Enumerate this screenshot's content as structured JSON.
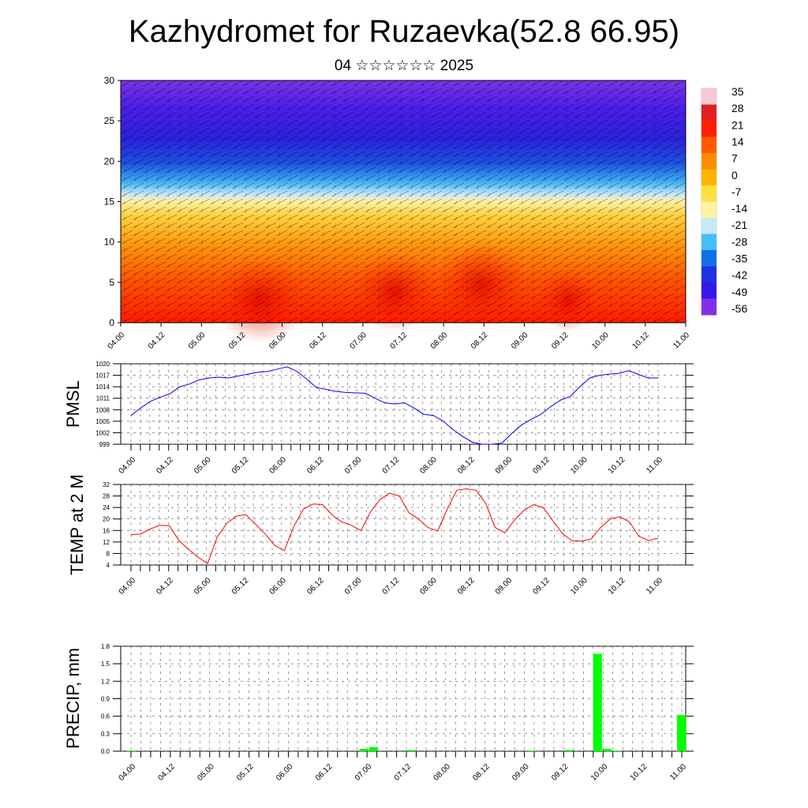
{
  "title": "Kazhydromet for Ruzaevka(52.8 66.95)",
  "subtitle": "04 ☆☆☆☆☆☆ 2025",
  "time_labels": [
    "04.00",
    "04.12",
    "05.00",
    "05.12",
    "06.00",
    "06.12",
    "07.00",
    "07.12",
    "08.00",
    "08.12",
    "09.00",
    "09.12",
    "10.00",
    "10.12",
    "11.00"
  ],
  "colors": {
    "pmsl": "#0000ff",
    "temp": "#ff0000",
    "precip": "#00ff00"
  },
  "chart_data": [
    {
      "type": "heatmap",
      "name": "upper-air-temperature-and-wind",
      "ylim": [
        0,
        30
      ],
      "yticks": [
        0,
        5,
        10,
        15,
        20,
        25,
        30
      ],
      "colorbar_labels": [
        "35",
        "28",
        "21",
        "14",
        "7",
        "0",
        "-7",
        "-14",
        "-21",
        "-28",
        "-35",
        "-42",
        "-49",
        "-56"
      ],
      "colorbar_colors": [
        "#f5c8d6",
        "#e02020",
        "#ff2000",
        "#ff5a00",
        "#ff8c00",
        "#ffb400",
        "#ffe040",
        "#fff4a0",
        "#c8e8f8",
        "#40c0f8",
        "#1070e8",
        "#2030e0",
        "#3818e8",
        "#8030e8"
      ]
    },
    {
      "type": "line",
      "ylabel": "PMSL",
      "ylim": [
        999,
        1020
      ],
      "yticks": [
        999,
        1002,
        1005,
        1008,
        1011,
        1014,
        1017,
        1020
      ],
      "values": [
        1006.5,
        1008.5,
        1010.2,
        1011.3,
        1012.2,
        1014.0,
        1014.7,
        1015.8,
        1016.3,
        1016.5,
        1016.3,
        1016.8,
        1017.3,
        1017.8,
        1018.0,
        1018.6,
        1019.2,
        1018.0,
        1016.0,
        1013.8,
        1013.3,
        1012.8,
        1012.5,
        1012.4,
        1012.3,
        1011.0,
        1009.8,
        1009.5,
        1009.8,
        1008.5,
        1006.8,
        1006.5,
        1005.0,
        1002.8,
        1001.0,
        999.5,
        999.0,
        999.0,
        999.3,
        1001.8,
        1004.0,
        1005.5,
        1006.8,
        1008.8,
        1010.5,
        1011.5,
        1014.0,
        1016.3,
        1017.0,
        1017.3,
        1017.5,
        1018.2,
        1017.2,
        1016.3,
        1016.3
      ]
    },
    {
      "type": "line",
      "ylabel": "TEMP at 2 M",
      "ylim": [
        4,
        32
      ],
      "yticks": [
        4,
        8,
        12,
        16,
        20,
        24,
        28,
        32
      ],
      "values": [
        14.5,
        14.8,
        16.5,
        17.8,
        17.7,
        12.5,
        9.5,
        6.7,
        4.5,
        13.8,
        18.5,
        21.0,
        21.5,
        18.2,
        14.8,
        10.8,
        9.0,
        17.5,
        23.5,
        25.2,
        25.0,
        21.3,
        19.0,
        17.8,
        16.0,
        22.5,
        26.8,
        29.0,
        28.0,
        22.2,
        20.0,
        17.0,
        15.8,
        23.5,
        30.0,
        30.5,
        30.0,
        25.5,
        17.0,
        15.2,
        19.5,
        23.0,
        25.0,
        24.0,
        19.5,
        15.0,
        12.5,
        12.3,
        13.0,
        17.0,
        20.0,
        20.8,
        19.0,
        14.0,
        12.5,
        13.3
      ]
    },
    {
      "type": "bar",
      "ylabel": "PRECIP, mm",
      "ylim": [
        0,
        1.8
      ],
      "yticks": [
        "0.0",
        "0.3",
        "0.6",
        "0.9",
        "1.2",
        "1.5",
        "1.8"
      ],
      "values": [
        0.01,
        0,
        0,
        0,
        0,
        0,
        0,
        0,
        0,
        0,
        0,
        0,
        0,
        0,
        0,
        0,
        0,
        0,
        0,
        0,
        0,
        0,
        0,
        0,
        0,
        0.04,
        0.07,
        0,
        0,
        0,
        0.02,
        0,
        0,
        0,
        0,
        0,
        0,
        0,
        0,
        0,
        0,
        0,
        0,
        0.01,
        0,
        0,
        0,
        0.02,
        0,
        0,
        1.67,
        0.04,
        0.01,
        0,
        0,
        0,
        0,
        0,
        0,
        0.62
      ]
    }
  ]
}
